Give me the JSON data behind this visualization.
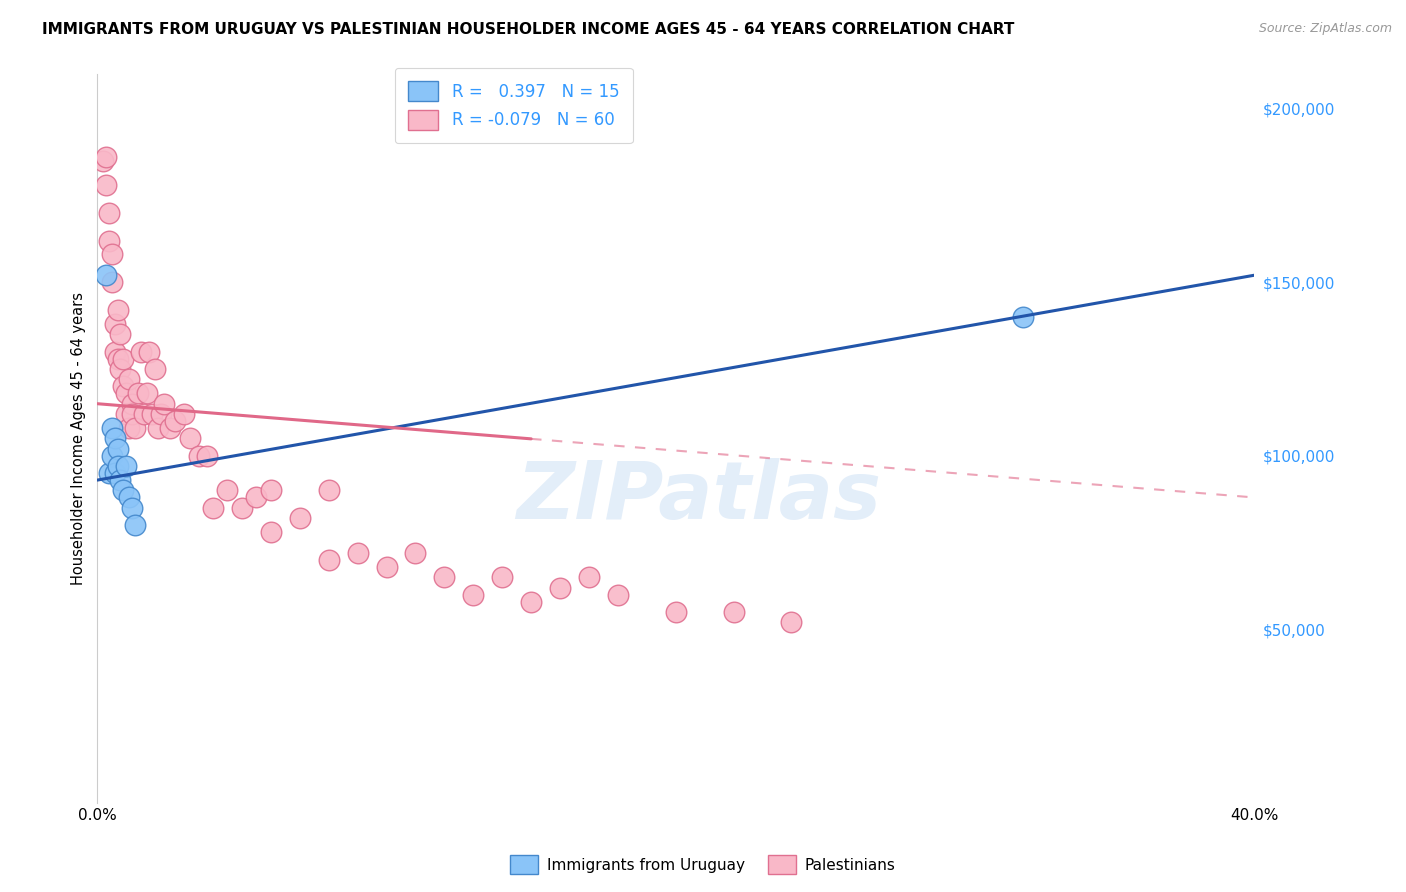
{
  "title": "IMMIGRANTS FROM URUGUAY VS PALESTINIAN HOUSEHOLDER INCOME AGES 45 - 64 YEARS CORRELATION CHART",
  "source": "Source: ZipAtlas.com",
  "ylabel": "Householder Income Ages 45 - 64 years",
  "xlim": [
    0,
    0.4
  ],
  "ylim": [
    0,
    210000
  ],
  "yticks": [
    0,
    50000,
    100000,
    150000,
    200000
  ],
  "ytick_labels": [
    "",
    "$50,000",
    "$100,000",
    "$150,000",
    "$200,000"
  ],
  "xticks": [
    0.0,
    0.05,
    0.1,
    0.15,
    0.2,
    0.25,
    0.3,
    0.35,
    0.4
  ],
  "xtick_labels": [
    "0.0%",
    "",
    "",
    "",
    "",
    "",
    "",
    "",
    "40.0%"
  ],
  "uruguay_color": "#8ac4f8",
  "palestinian_color": "#f9b8c8",
  "uruguay_edge": "#4488cc",
  "palestinian_edge": "#e07090",
  "trend_uruguay_color": "#2255aa",
  "trend_palestinian_color": "#e06888",
  "watermark": "ZIPatlas",
  "uruguay_x": [
    0.003,
    0.004,
    0.005,
    0.005,
    0.006,
    0.006,
    0.007,
    0.007,
    0.008,
    0.009,
    0.01,
    0.011,
    0.012,
    0.013,
    0.32
  ],
  "uruguay_y": [
    152000,
    95000,
    108000,
    100000,
    105000,
    95000,
    102000,
    97000,
    93000,
    90000,
    97000,
    88000,
    85000,
    80000,
    140000
  ],
  "palestinian_x": [
    0.002,
    0.003,
    0.003,
    0.004,
    0.004,
    0.005,
    0.005,
    0.006,
    0.006,
    0.007,
    0.007,
    0.008,
    0.008,
    0.009,
    0.009,
    0.01,
    0.01,
    0.011,
    0.011,
    0.012,
    0.012,
    0.013,
    0.014,
    0.015,
    0.016,
    0.017,
    0.018,
    0.019,
    0.02,
    0.021,
    0.022,
    0.023,
    0.025,
    0.027,
    0.03,
    0.032,
    0.035,
    0.038,
    0.04,
    0.045,
    0.05,
    0.055,
    0.06,
    0.07,
    0.08,
    0.09,
    0.1,
    0.11,
    0.12,
    0.13,
    0.14,
    0.15,
    0.16,
    0.17,
    0.18,
    0.2,
    0.22,
    0.24,
    0.06,
    0.08
  ],
  "palestinian_y": [
    185000,
    186000,
    178000,
    170000,
    162000,
    158000,
    150000,
    138000,
    130000,
    128000,
    142000,
    125000,
    135000,
    120000,
    128000,
    118000,
    112000,
    122000,
    108000,
    115000,
    112000,
    108000,
    118000,
    130000,
    112000,
    118000,
    130000,
    112000,
    125000,
    108000,
    112000,
    115000,
    108000,
    110000,
    112000,
    105000,
    100000,
    100000,
    85000,
    90000,
    85000,
    88000,
    90000,
    82000,
    90000,
    72000,
    68000,
    72000,
    65000,
    60000,
    65000,
    58000,
    62000,
    65000,
    60000,
    55000,
    55000,
    52000,
    78000,
    70000
  ],
  "trend_uru_x0": 0.0,
  "trend_uru_y0": 93000,
  "trend_uru_x1": 0.4,
  "trend_uru_y1": 152000,
  "trend_pal_x0": 0.0,
  "trend_pal_y0": 115000,
  "trend_pal_x1": 0.4,
  "trend_pal_y1": 88000,
  "trend_pal_solid_end": 0.15,
  "trend_pal_dash_end": 0.4
}
